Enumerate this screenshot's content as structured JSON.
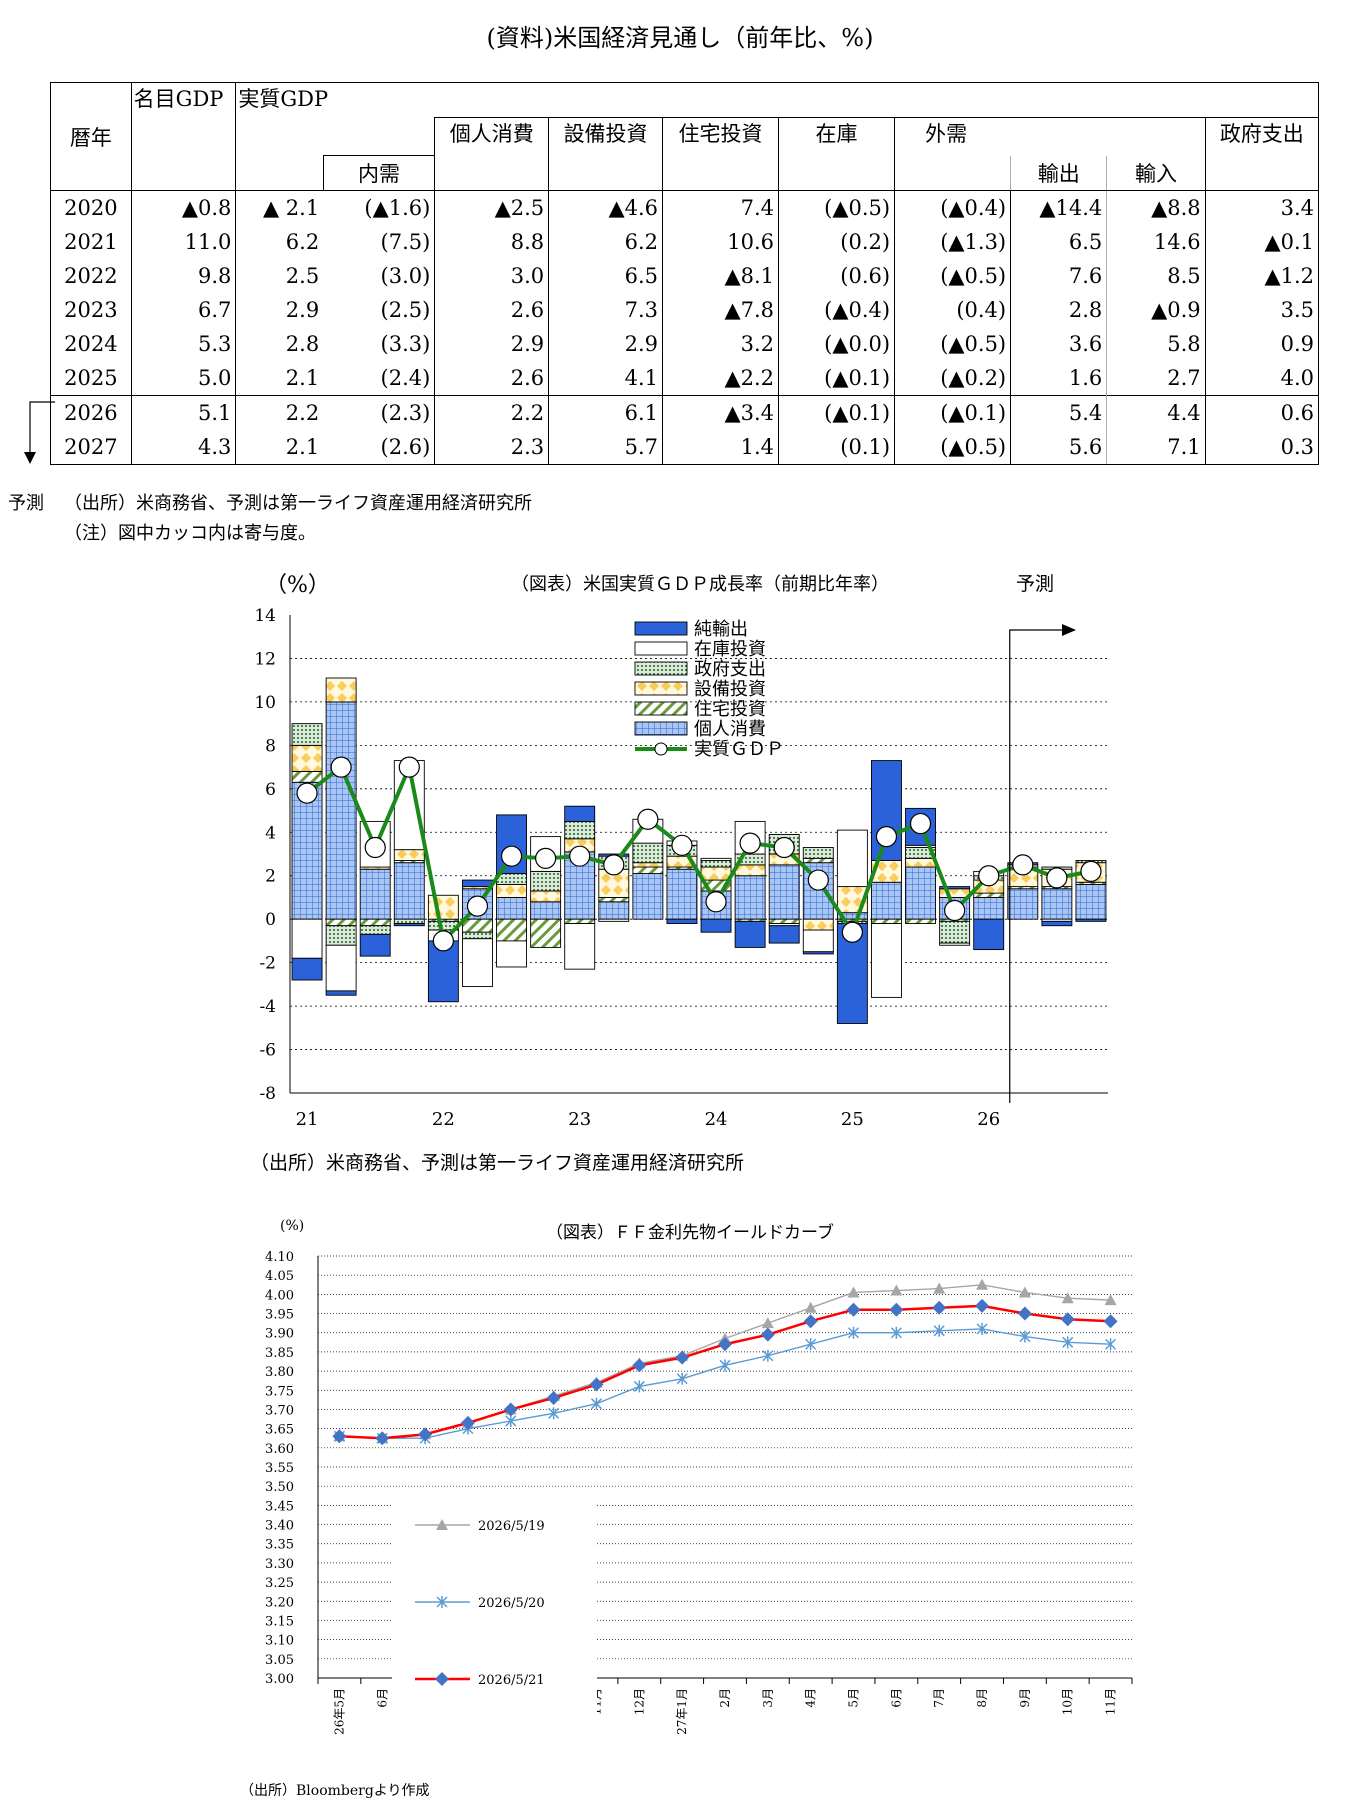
{
  "table": {
    "title": "(資料)米国経済見通し（前年比、%)",
    "headers": {
      "year": "暦年",
      "nominal_gdp": "名目GDP",
      "real_gdp": "実質GDP",
      "domestic": "内需",
      "consumption": "個人消費",
      "capex": "設備投資",
      "housing": "住宅投資",
      "inventory": "在庫",
      "external": "外需",
      "exports": "輸出",
      "imports": "輸入",
      "government": "政府支出"
    },
    "rows": [
      [
        "2020",
        "▲0.8",
        "▲ 2.1",
        "(▲1.6)",
        "▲2.5",
        "▲4.6",
        "7.4",
        "(▲0.5)",
        "(▲0.4)",
        "▲14.4",
        "▲8.8",
        "3.4"
      ],
      [
        "2021",
        "11.0",
        "6.2",
        "(7.5)",
        "8.8",
        "6.2",
        "10.6",
        "(0.2)",
        "(▲1.3)",
        "6.5",
        "14.6",
        "▲0.1"
      ],
      [
        "2022",
        "9.8",
        "2.5",
        "(3.0)",
        "3.0",
        "6.5",
        "▲8.1",
        "(0.6)",
        "(▲0.5)",
        "7.6",
        "8.5",
        "▲1.2"
      ],
      [
        "2023",
        "6.7",
        "2.9",
        "(2.5)",
        "2.6",
        "7.3",
        "▲7.8",
        "(▲0.4)",
        "(0.4)",
        "2.8",
        "▲0.9",
        "3.5"
      ],
      [
        "2024",
        "5.3",
        "2.8",
        "(3.3)",
        "2.9",
        "2.9",
        "3.2",
        "(▲0.0)",
        "(▲0.5)",
        "3.6",
        "5.8",
        "0.9"
      ],
      [
        "2025",
        "5.0",
        "2.1",
        "(2.4)",
        "2.6",
        "4.1",
        "▲2.2",
        "(▲0.1)",
        "(▲0.2)",
        "1.6",
        "2.7",
        "4.0"
      ],
      [
        "2026",
        "5.1",
        "2.2",
        "(2.3)",
        "2.2",
        "6.1",
        "▲3.4",
        "(▲0.1)",
        "(▲0.1)",
        "5.4",
        "4.4",
        "0.6"
      ],
      [
        "2027",
        "4.3",
        "2.1",
        "(2.6)",
        "2.3",
        "5.7",
        "1.4",
        "(0.1)",
        "(▲0.5)",
        "5.6",
        "7.1",
        "0.3"
      ]
    ],
    "forecast_label": "予測",
    "source": "（出所）米商務省、予測は第一ライフ資産運用経済研究所",
    "note": "（注）図中カッコ内は寄与度。"
  },
  "chart_data": [
    {
      "type": "bar",
      "title": "（図表）米国実質ＧＤＰ成長率（前期比年率）",
      "ylabel": "（%）",
      "forecast_label": "予測",
      "ylim": [
        -8,
        14
      ],
      "yticks": [
        "14",
        "12",
        "10",
        "8",
        "6",
        "4",
        "2",
        "0",
        "-2",
        "-4",
        "-6",
        "-8"
      ],
      "xtick_labels": [
        "21",
        "22",
        "23",
        "24",
        "25",
        "26"
      ],
      "categories": [
        "21Q1",
        "21Q2",
        "21Q3",
        "21Q4",
        "22Q1",
        "22Q2",
        "22Q3",
        "22Q4",
        "23Q1",
        "23Q2",
        "23Q3",
        "23Q4",
        "24Q1",
        "24Q2",
        "24Q3",
        "24Q4",
        "25Q1",
        "25Q2",
        "25Q3",
        "25Q4",
        "26Q1",
        "26Q2",
        "26Q3",
        "26Q4"
      ],
      "forecast_start_index": 21,
      "legend_position": "top-center",
      "series": [
        {
          "name": "純輸出",
          "kind": "bar",
          "color": "#2b62d9",
          "values": [
            -1.0,
            -0.2,
            -1.0,
            -0.1,
            -2.8,
            0.3,
            2.7,
            0.0,
            0.7,
            0.1,
            0.0,
            -0.2,
            -0.6,
            -1.2,
            -0.8,
            -0.1,
            -4.6,
            4.6,
            1.7,
            0.1,
            -1.4,
            0.1,
            -0.2,
            -0.1
          ]
        },
        {
          "name": "在庫投資",
          "kind": "bar",
          "color": "#ffffff",
          "values": [
            -1.8,
            -2.1,
            2.1,
            4.1,
            -0.5,
            -2.2,
            -1.2,
            1.6,
            -2.1,
            -0.1,
            1.1,
            0.2,
            0.1,
            1.5,
            -0.1,
            -1.0,
            2.6,
            -3.4,
            0.1,
            -0.1,
            0.2,
            0.1,
            -0.1,
            0.0
          ]
        },
        {
          "name": "政府支出",
          "kind": "bar",
          "color": "#ffffff",
          "values": [
            1.0,
            -0.9,
            -0.4,
            -0.2,
            -0.4,
            -0.3,
            0.5,
            0.9,
            0.8,
            0.6,
            0.9,
            0.5,
            0.3,
            0.5,
            0.9,
            0.5,
            -0.1,
            0.0,
            0.5,
            -1.0,
            0.2,
            0.1,
            0.1,
            0.1
          ]
        },
        {
          "name": "設備投資",
          "kind": "bar",
          "color": "#fde89a",
          "values": [
            1.2,
            1.1,
            0.1,
            0.5,
            1.1,
            0.1,
            0.6,
            0.5,
            0.6,
            1.3,
            0.2,
            0.5,
            0.6,
            0.5,
            0.5,
            -0.5,
            1.2,
            1.0,
            0.4,
            0.4,
            0.6,
            0.8,
            0.8,
            0.9
          ]
        },
        {
          "name": "住宅投資",
          "kind": "bar",
          "color": "#ffffff",
          "values": [
            0.5,
            -0.3,
            -0.3,
            0.1,
            -0.1,
            -0.6,
            -1.0,
            -1.3,
            -0.2,
            0.2,
            0.3,
            0.1,
            0.5,
            -0.1,
            -0.2,
            0.2,
            -0.1,
            -0.2,
            -0.2,
            -0.1,
            0.2,
            0.1,
            0.1,
            0.1
          ]
        },
        {
          "name": "個人消費",
          "kind": "bar",
          "color": "#a9c6f3",
          "values": [
            6.3,
            10.0,
            2.3,
            2.6,
            0.0,
            1.4,
            1.0,
            0.8,
            3.1,
            0.8,
            2.1,
            2.3,
            1.3,
            2.0,
            2.5,
            2.6,
            0.3,
            1.7,
            2.4,
            1.0,
            1.0,
            1.4,
            1.4,
            1.6
          ]
        },
        {
          "name": "実質ＧＤＰ",
          "kind": "line",
          "color": "#1b8a1b",
          "values": [
            5.8,
            7.0,
            3.3,
            7.0,
            -1.0,
            0.6,
            2.9,
            2.8,
            2.9,
            2.5,
            4.6,
            3.4,
            0.8,
            3.5,
            3.3,
            1.8,
            -0.6,
            3.8,
            4.4,
            0.4,
            2.0,
            2.5,
            1.9,
            2.2
          ]
        }
      ]
    },
    {
      "type": "line",
      "title": "（図表）ＦＦ金利先物イールドカーブ",
      "ylabel": "(%)",
      "ylim": [
        3.0,
        4.1
      ],
      "yticks": [
        "4.10",
        "4.05",
        "4.00",
        "3.95",
        "3.90",
        "3.85",
        "3.80",
        "3.75",
        "3.70",
        "3.65",
        "3.60",
        "3.55",
        "3.50",
        "3.45",
        "3.40",
        "3.35",
        "3.30",
        "3.25",
        "3.20",
        "3.15",
        "3.10",
        "3.05",
        "3.00"
      ],
      "categories": [
        "26年5月",
        "6月",
        "7月",
        "8月",
        "9月",
        "10月",
        "11月",
        "12月",
        "27年1月",
        "2月",
        "3月",
        "4月",
        "5月",
        "6月",
        "7月",
        "8月",
        "9月",
        "10月",
        "11月"
      ],
      "legend_position": "bottom-left",
      "series": [
        {
          "name": "2026/5/19",
          "color": "#a6a6a6",
          "marker": "triangle",
          "values": [
            3.63,
            3.625,
            3.635,
            3.665,
            3.7,
            3.735,
            3.77,
            3.82,
            3.84,
            3.885,
            3.925,
            3.965,
            4.005,
            4.01,
            4.015,
            4.025,
            4.005,
            3.99,
            3.985
          ]
        },
        {
          "name": "2026/5/20",
          "color": "#5b9bd5",
          "marker": "asterisk",
          "values": [
            3.63,
            3.625,
            3.625,
            3.65,
            3.67,
            3.69,
            3.715,
            3.76,
            3.78,
            3.815,
            3.84,
            3.87,
            3.9,
            3.9,
            3.905,
            3.91,
            3.89,
            3.875,
            3.87
          ]
        },
        {
          "name": "2026/5/21",
          "color": "#ff0000",
          "marker": "diamond",
          "values": [
            3.63,
            3.625,
            3.635,
            3.665,
            3.7,
            3.73,
            3.765,
            3.815,
            3.835,
            3.87,
            3.895,
            3.93,
            3.96,
            3.96,
            3.965,
            3.97,
            3.95,
            3.935,
            3.93
          ]
        }
      ]
    }
  ],
  "chart_notes": {
    "gdp_source": "（出所）米商務省、予測は第一ライフ資産運用経済研究所",
    "ff_source": "（出所）Bloombergより作成"
  }
}
